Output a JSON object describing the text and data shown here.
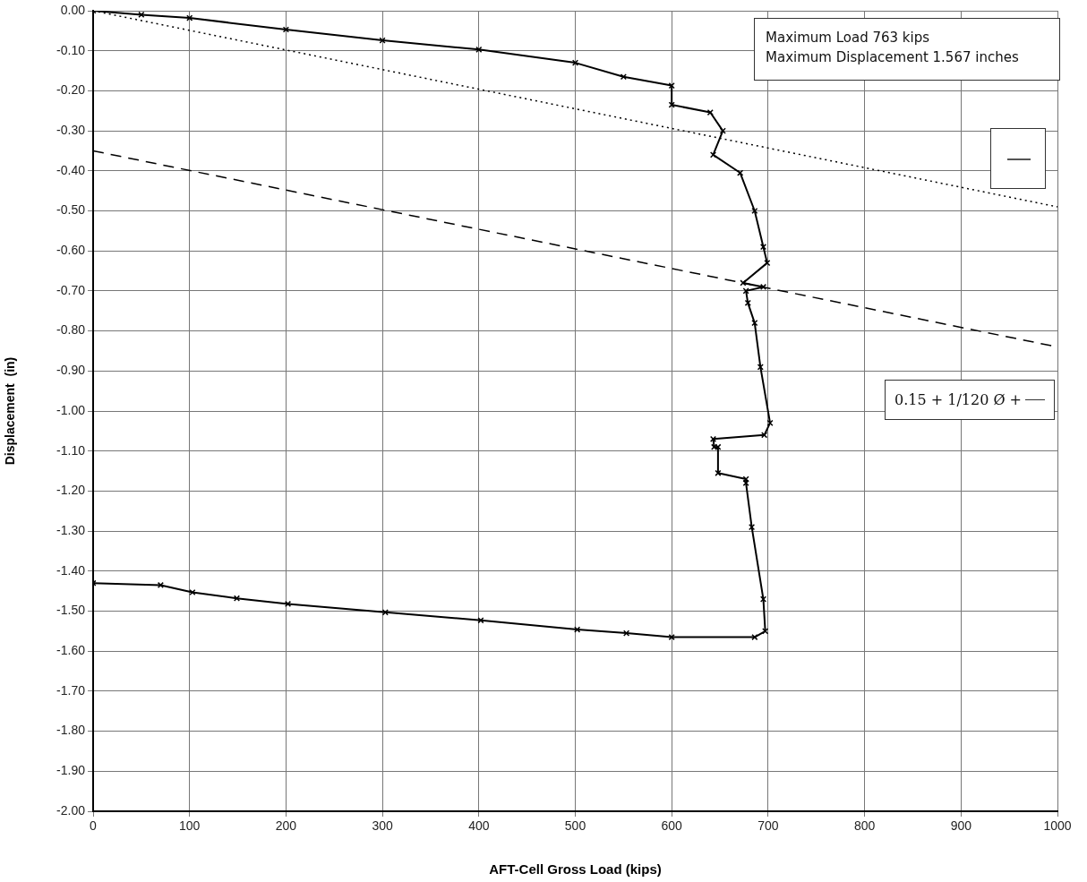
{
  "chart_data": {
    "type": "line",
    "xlabel": "AFT-Cell Gross Load (kips)",
    "ylabel": "Displacement  (in)",
    "xlim": [
      0,
      1000
    ],
    "xticks": [
      0,
      100,
      200,
      300,
      400,
      500,
      600,
      700,
      800,
      900,
      1000
    ],
    "ylim": [
      -2.0,
      0.0
    ],
    "yticks": [
      {
        "value": 0,
        "label": "0.00"
      },
      {
        "value": -0.1,
        "label": "-0.10"
      },
      {
        "value": -0.2,
        "label": "-0.20"
      },
      {
        "value": -0.3,
        "label": "-0.30"
      },
      {
        "value": -0.4,
        "label": "-0.40"
      },
      {
        "value": -0.5,
        "label": "-0.50"
      },
      {
        "value": -0.6,
        "label": "-0.60"
      },
      {
        "value": -0.7,
        "label": "-0.70"
      },
      {
        "value": -0.8,
        "label": "-0.80"
      },
      {
        "value": -0.9,
        "label": "-0.90"
      },
      {
        "value": -1.0,
        "label": "-1.00"
      },
      {
        "value": -1.1,
        "label": "-1.10"
      },
      {
        "value": -1.2,
        "label": "-1.20"
      },
      {
        "value": -1.3,
        "label": "-1.30"
      },
      {
        "value": -1.4,
        "label": "-1.40"
      },
      {
        "value": -1.5,
        "label": "-1.50"
      },
      {
        "value": -1.6,
        "label": "-1.60"
      },
      {
        "value": -1.7,
        "label": "-1.70"
      },
      {
        "value": -1.8,
        "label": "-1.80"
      },
      {
        "value": -1.9,
        "label": "-1.90"
      },
      {
        "value": -2.0,
        "label": "-2.00"
      }
    ],
    "grid": true,
    "legend": false,
    "series": [
      {
        "color": "#000000",
        "marker": "cross",
        "line_style": "solid",
        "x": [
          0,
          50,
          100,
          200,
          300,
          400,
          500,
          550,
          600,
          600,
          640,
          653,
          643,
          671,
          686,
          695,
          699,
          674,
          695,
          677,
          679,
          686,
          692,
          702,
          696,
          643,
          644,
          648,
          648,
          677,
          677,
          683,
          695,
          697,
          686,
          600,
          553,
          502,
          402,
          303,
          202,
          149,
          103,
          70,
          0
        ],
        "values": [
          0,
          -0.01,
          -0.018,
          -0.047,
          -0.074,
          -0.097,
          -0.13,
          -0.165,
          -0.187,
          -0.235,
          -0.254,
          -0.3,
          -0.36,
          -0.405,
          -0.5,
          -0.59,
          -0.63,
          -0.68,
          -0.69,
          -0.7,
          -0.73,
          -0.78,
          -0.89,
          -1.03,
          -1.06,
          -1.07,
          -1.09,
          -1.09,
          -1.155,
          -1.17,
          -1.18,
          -1.29,
          -1.47,
          -1.55,
          -1.565,
          -1.565,
          -1.555,
          -1.546,
          -1.523,
          -1.503,
          -1.482,
          -1.468,
          -1.453,
          -1.435,
          -1.43
        ]
      },
      {
        "color": "#000000",
        "marker": "none",
        "line_style": "dotted",
        "x": [
          0,
          1000
        ],
        "values": [
          0,
          -0.49
        ]
      },
      {
        "color": "#000000",
        "marker": "none",
        "line_style": "dashed",
        "x": [
          0,
          1000
        ],
        "values": [
          -0.35,
          -0.84
        ]
      }
    ],
    "annotations": [
      "Maximum Load 763 kips",
      "Maximum  Displacement 1.567 inches",
      "0.15 + 1/120 Ø +"
    ]
  }
}
